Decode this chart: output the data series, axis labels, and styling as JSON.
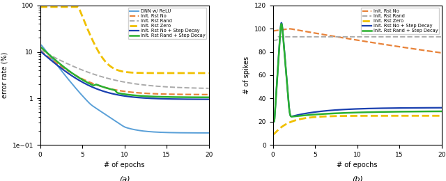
{
  "left_plot": {
    "xlabel": "# of epochs",
    "ylabel": "error rate (%)",
    "xlim": [
      0,
      20
    ],
    "ylim_log": [
      0.1,
      100
    ],
    "subtitle": "(a)",
    "legend": [
      {
        "label": "DNN w/ ReLU",
        "color": "#5aa0d8",
        "linestyle": "solid",
        "linewidth": 1.4
      },
      {
        "label": "Init. Rst No",
        "color": "#e8833a",
        "linestyle": "dashed",
        "linewidth": 1.6
      },
      {
        "label": "Init. Rst Rand",
        "color": "#aaaaaa",
        "linestyle": "dashed",
        "linewidth": 1.4
      },
      {
        "label": "Init. Rst Zero",
        "color": "#f0c000",
        "linestyle": "dashed",
        "linewidth": 2.0
      },
      {
        "label": "Init. Rst No + Step Decay",
        "color": "#1a40b0",
        "linestyle": "solid",
        "linewidth": 1.6
      },
      {
        "label": "Init. Rst Rand + Step Decay",
        "color": "#2ab030",
        "linestyle": "solid",
        "linewidth": 1.8
      }
    ]
  },
  "right_plot": {
    "xlabel": "# of epochs",
    "ylabel": "# of spikes",
    "xlim": [
      0,
      20
    ],
    "ylim": [
      0,
      120
    ],
    "subtitle": "(b)",
    "legend": [
      {
        "label": "Init. Rst No",
        "color": "#e8833a",
        "linestyle": "dashed",
        "linewidth": 1.6
      },
      {
        "label": "Init. Rst Rand",
        "color": "#aaaaaa",
        "linestyle": "dashed",
        "linewidth": 1.4
      },
      {
        "label": "Init. Rst Zero",
        "color": "#f0c000",
        "linestyle": "dashed",
        "linewidth": 2.0
      },
      {
        "label": "Init. Rst No + Step Decay",
        "color": "#1a40b0",
        "linestyle": "solid",
        "linewidth": 1.6
      },
      {
        "label": "Init. Rst Rand + Step Decay",
        "color": "#2ab030",
        "linestyle": "solid",
        "linewidth": 1.8
      }
    ]
  }
}
